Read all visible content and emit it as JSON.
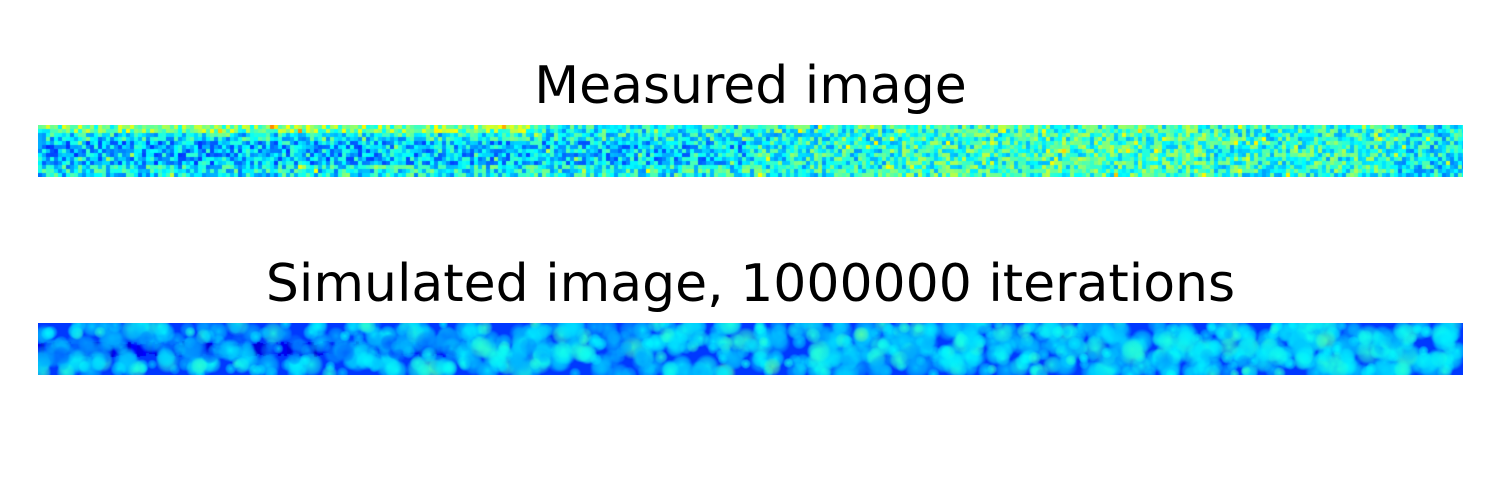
{
  "panels": {
    "measured": {
      "title": "Measured image",
      "colormap": "jet",
      "colors": {
        "dominant": "#1fa8ff",
        "dark": "#0a2cff",
        "bright": "#3cf5c8",
        "peak": "#9cff60"
      }
    },
    "simulated": {
      "title": "Simulated image, 1000000 iterations",
      "colormap": "jet",
      "colors": {
        "dominant": "#1060ff",
        "dark": "#0000c8",
        "bright": "#24c8ff",
        "peak": "#40f0f0"
      }
    }
  }
}
